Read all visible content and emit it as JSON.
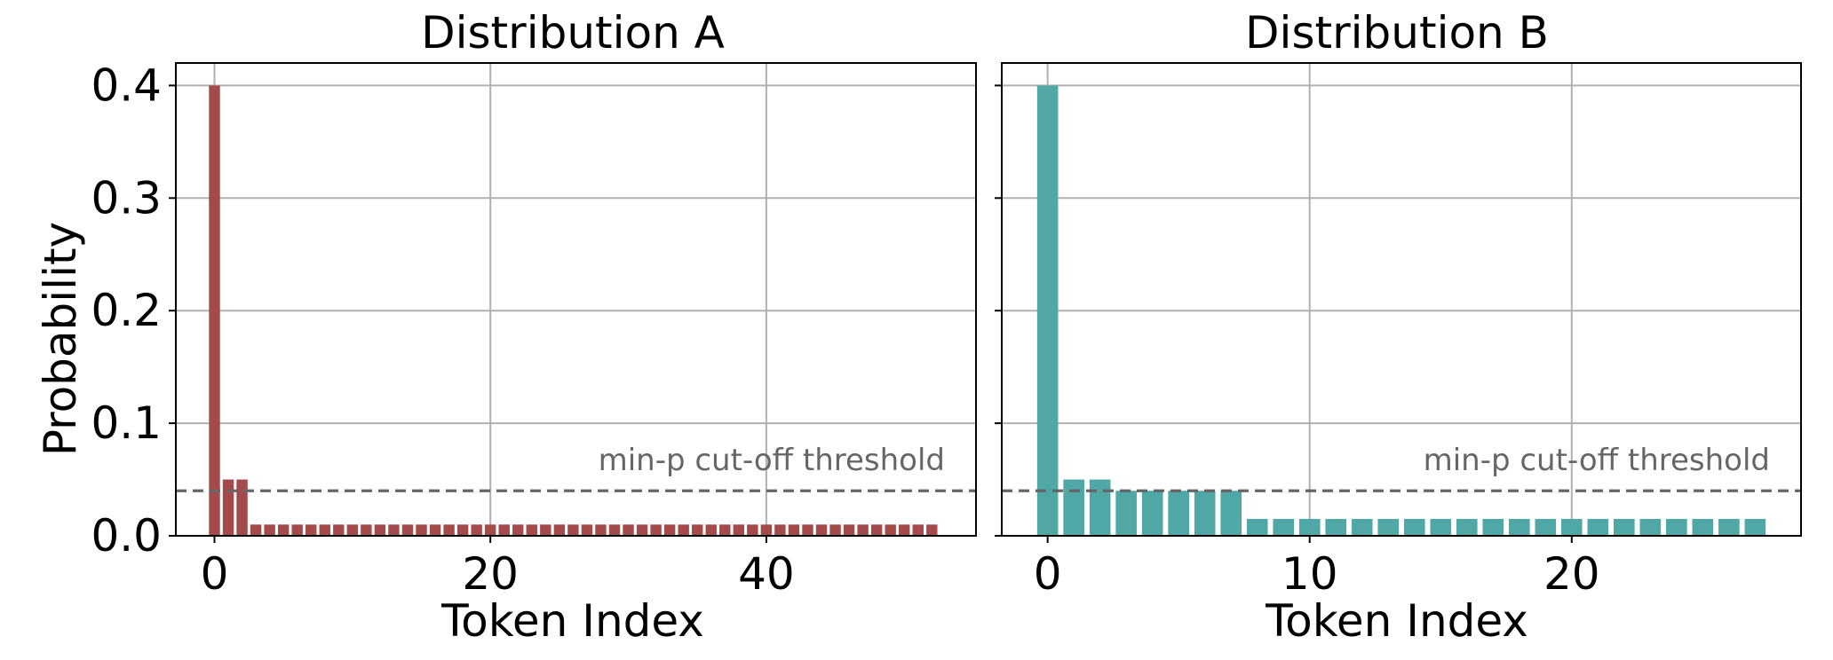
{
  "chart_data": [
    {
      "type": "bar",
      "title": "Distribution A",
      "xlabel": "Token Index",
      "ylabel": "Probability",
      "x": [
        0,
        1,
        2,
        3,
        4,
        5,
        6,
        7,
        8,
        9,
        10,
        11,
        12,
        13,
        14,
        15,
        16,
        17,
        18,
        19,
        20,
        21,
        22,
        23,
        24,
        25,
        26,
        27,
        28,
        29,
        30,
        31,
        32,
        33,
        34,
        35,
        36,
        37,
        38,
        39,
        40,
        41,
        42,
        43,
        44,
        45,
        46,
        47,
        48,
        49,
        50,
        51,
        52
      ],
      "values": [
        0.4,
        0.05,
        0.05,
        0.01,
        0.01,
        0.01,
        0.01,
        0.01,
        0.01,
        0.01,
        0.01,
        0.01,
        0.01,
        0.01,
        0.01,
        0.01,
        0.01,
        0.01,
        0.01,
        0.01,
        0.01,
        0.01,
        0.01,
        0.01,
        0.01,
        0.01,
        0.01,
        0.01,
        0.01,
        0.01,
        0.01,
        0.01,
        0.01,
        0.01,
        0.01,
        0.01,
        0.01,
        0.01,
        0.01,
        0.01,
        0.01,
        0.01,
        0.01,
        0.01,
        0.01,
        0.01,
        0.01,
        0.01,
        0.01,
        0.01,
        0.01,
        0.01,
        0.01
      ],
      "color": "#a44a4a",
      "xlim": [
        -2.8,
        55.2
      ],
      "ylim": [
        0,
        0.42
      ],
      "xticks": [
        0,
        20,
        40
      ],
      "xtick_labels": [
        "0",
        "20",
        "40"
      ],
      "yticks": [
        0.0,
        0.1,
        0.2,
        0.3,
        0.4
      ],
      "ytick_labels": [
        "0.0",
        "0.1",
        "0.2",
        "0.3",
        "0.4"
      ],
      "grid": true,
      "threshold": {
        "value": 0.04,
        "label": "min-p cut-off threshold",
        "color": "#666666"
      }
    },
    {
      "type": "bar",
      "title": "Distribution B",
      "xlabel": "Token Index",
      "ylabel": "",
      "x": [
        0,
        1,
        2,
        3,
        4,
        5,
        6,
        7,
        8,
        9,
        10,
        11,
        12,
        13,
        14,
        15,
        16,
        17,
        18,
        19,
        20,
        21,
        22,
        23,
        24,
        25,
        26,
        27
      ],
      "values": [
        0.4,
        0.05,
        0.05,
        0.04,
        0.04,
        0.04,
        0.04,
        0.04,
        0.015,
        0.015,
        0.015,
        0.015,
        0.015,
        0.015,
        0.015,
        0.015,
        0.015,
        0.015,
        0.015,
        0.015,
        0.015,
        0.015,
        0.015,
        0.015,
        0.015,
        0.015,
        0.015,
        0.015
      ],
      "color": "#4fa8a6",
      "xlim": [
        -1.75,
        28.75
      ],
      "ylim": [
        0,
        0.42
      ],
      "xticks": [
        0,
        10,
        20
      ],
      "xtick_labels": [
        "0",
        "10",
        "20"
      ],
      "yticks": [
        0.0,
        0.1,
        0.2,
        0.3,
        0.4
      ],
      "ytick_labels": [],
      "grid": true,
      "threshold": {
        "value": 0.04,
        "label": "min-p cut-off threshold",
        "color": "#666666"
      }
    }
  ]
}
